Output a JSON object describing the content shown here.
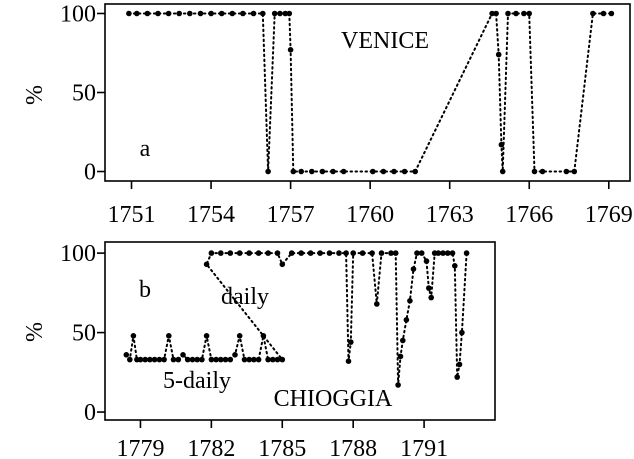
{
  "chart_data": [
    {
      "type": "scatter",
      "panel": "a",
      "annotations": [
        "VENICE",
        "a"
      ],
      "ylabel": "%",
      "xlim": [
        1750.0,
        1769.8
      ],
      "ylim": [
        -6,
        106
      ],
      "xticks": [
        1751,
        1754,
        1757,
        1760,
        1763,
        1766,
        1769
      ],
      "yticks": [
        0,
        50,
        100
      ],
      "grid": false,
      "series": [
        {
          "marker": "dot",
          "linestyle": "dotted",
          "points": [
            [
              1750.9,
              100
            ],
            [
              1751.2,
              100
            ],
            [
              1751.6,
              100
            ],
            [
              1752.0,
              100
            ],
            [
              1752.4,
              100
            ],
            [
              1752.8,
              100
            ],
            [
              1753.2,
              100
            ],
            [
              1753.6,
              100
            ],
            [
              1754.0,
              100
            ],
            [
              1754.4,
              100
            ],
            [
              1754.8,
              100
            ],
            [
              1755.2,
              100
            ],
            [
              1755.6,
              100
            ],
            [
              1755.95,
              100
            ],
            [
              1756.15,
              0
            ],
            [
              1756.4,
              100
            ],
            [
              1756.6,
              100
            ],
            [
              1756.8,
              100
            ],
            [
              1756.95,
              100
            ],
            [
              1757.0,
              77
            ],
            [
              1757.1,
              0
            ],
            [
              1757.4,
              0
            ],
            [
              1757.8,
              0
            ],
            [
              1758.2,
              0
            ],
            [
              1758.6,
              0
            ],
            [
              1759.0,
              0
            ],
            [
              1760.1,
              0
            ],
            [
              1760.5,
              0
            ],
            [
              1760.9,
              0
            ],
            [
              1761.3,
              0
            ],
            [
              1761.7,
              0
            ],
            [
              1764.6,
              100
            ],
            [
              1764.75,
              100
            ],
            [
              1764.85,
              74
            ],
            [
              1764.95,
              17
            ],
            [
              1765.0,
              0
            ],
            [
              1765.2,
              100
            ],
            [
              1765.5,
              100
            ],
            [
              1765.8,
              100
            ],
            [
              1766.0,
              100
            ],
            [
              1766.2,
              0
            ],
            [
              1766.5,
              0
            ],
            [
              1767.4,
              0
            ],
            [
              1767.7,
              0
            ],
            [
              1768.4,
              100
            ],
            [
              1768.8,
              100
            ],
            [
              1769.1,
              100
            ]
          ]
        }
      ]
    },
    {
      "type": "scatter",
      "panel": "b",
      "annotations": [
        "b",
        "daily",
        "5-daily",
        "CHIOGGIA"
      ],
      "ylabel": "%",
      "xlim": [
        1777.5,
        1794.0
      ],
      "ylim": [
        -5,
        107
      ],
      "xticks": [
        1779,
        1782,
        1785,
        1788,
        1791
      ],
      "yticks": [
        0,
        50,
        100
      ],
      "grid": false,
      "series": [
        {
          "marker": "dot",
          "linestyle": "dotted",
          "points": [
            [
              1778.4,
              36
            ],
            [
              1778.55,
              33
            ],
            [
              1778.7,
              48
            ],
            [
              1778.85,
              33
            ],
            [
              1779.0,
              33
            ],
            [
              1779.2,
              33
            ],
            [
              1779.4,
              33
            ],
            [
              1779.6,
              33
            ],
            [
              1779.8,
              33
            ],
            [
              1780.0,
              33
            ],
            [
              1780.2,
              48
            ],
            [
              1780.4,
              33
            ],
            [
              1780.6,
              33
            ],
            [
              1780.8,
              36
            ],
            [
              1781.0,
              33
            ],
            [
              1781.2,
              33
            ],
            [
              1781.4,
              33
            ],
            [
              1781.6,
              33
            ],
            [
              1781.8,
              48
            ],
            [
              1782.0,
              33
            ],
            [
              1782.2,
              33
            ],
            [
              1782.4,
              33
            ],
            [
              1782.6,
              33
            ],
            [
              1782.8,
              33
            ],
            [
              1783.0,
              36
            ],
            [
              1783.2,
              48
            ],
            [
              1783.4,
              33
            ],
            [
              1783.6,
              33
            ],
            [
              1783.8,
              33
            ],
            [
              1784.0,
              33
            ],
            [
              1784.2,
              48
            ],
            [
              1784.4,
              33
            ],
            [
              1784.6,
              33
            ],
            [
              1784.8,
              33
            ],
            [
              1785.0,
              33
            ],
            [
              1781.8,
              93
            ],
            [
              1782.0,
              100
            ],
            [
              1782.4,
              100
            ],
            [
              1782.8,
              100
            ],
            [
              1783.2,
              100
            ],
            [
              1783.6,
              100
            ],
            [
              1784.0,
              100
            ],
            [
              1784.4,
              100
            ],
            [
              1784.8,
              100
            ],
            [
              1785.0,
              93
            ],
            [
              1785.4,
              100
            ],
            [
              1785.8,
              100
            ],
            [
              1786.2,
              100
            ],
            [
              1786.6,
              100
            ],
            [
              1787.0,
              100
            ],
            [
              1787.4,
              100
            ],
            [
              1787.7,
              100
            ],
            [
              1787.8,
              32
            ],
            [
              1787.9,
              44
            ],
            [
              1788.0,
              100
            ],
            [
              1788.4,
              100
            ],
            [
              1788.8,
              100
            ],
            [
              1789.0,
              68
            ],
            [
              1789.2,
              100
            ],
            [
              1789.6,
              100
            ],
            [
              1789.8,
              100
            ],
            [
              1789.9,
              17
            ],
            [
              1790.0,
              35
            ],
            [
              1790.1,
              45
            ],
            [
              1790.25,
              58
            ],
            [
              1790.4,
              70
            ],
            [
              1790.55,
              90
            ],
            [
              1790.7,
              100
            ],
            [
              1790.9,
              100
            ],
            [
              1791.1,
              95
            ],
            [
              1791.2,
              78
            ],
            [
              1791.3,
              72
            ],
            [
              1791.45,
              100
            ],
            [
              1791.6,
              100
            ],
            [
              1791.8,
              100
            ],
            [
              1792.0,
              100
            ],
            [
              1792.2,
              100
            ],
            [
              1792.3,
              92
            ],
            [
              1792.4,
              22
            ],
            [
              1792.5,
              30
            ],
            [
              1792.6,
              50
            ],
            [
              1792.8,
              100
            ]
          ]
        }
      ]
    }
  ]
}
